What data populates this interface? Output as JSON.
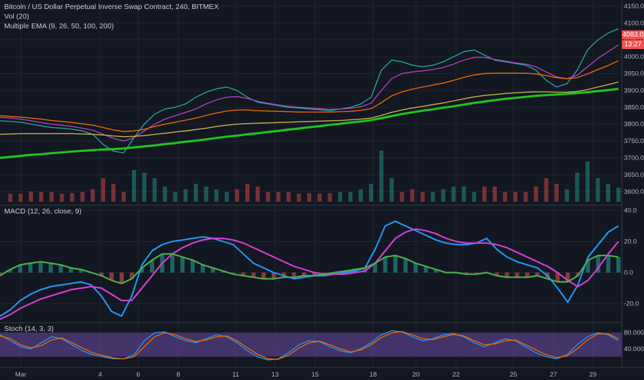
{
  "chart_data": [
    {
      "type": "line",
      "title": "Bitcoin / US Dollar Perpetual Inverse Swap Contract, 240, BITMEX",
      "indicators": [
        "Vol (20)",
        "Multiple EMA (9, 26, 50, 100, 200)"
      ],
      "ylim": [
        3570,
        4160
      ],
      "yticks": [
        "4150.0",
        "4100.0",
        "4050.0",
        "4000.0",
        "3950.0",
        "3900.0",
        "3850.0",
        "3800.0",
        "3750.0",
        "3700.0",
        "3650.0",
        "3600.0"
      ],
      "x_labels": [
        "Mar",
        "4",
        "6",
        "8",
        "11",
        "13",
        "15",
        "18",
        "20",
        "22",
        "25",
        "27",
        "29"
      ],
      "last_price": "4083.0",
      "countdown": "13:27",
      "series": [
        {
          "color": "#26a69a",
          "values": [
            3810,
            3808,
            3806,
            3800,
            3795,
            3790,
            3788,
            3785,
            3780,
            3770,
            3740,
            3720,
            3715,
            3760,
            3800,
            3830,
            3845,
            3850,
            3860,
            3880,
            3895,
            3905,
            3910,
            3900,
            3880,
            3865,
            3860,
            3855,
            3850,
            3848,
            3845,
            3843,
            3840,
            3845,
            3850,
            3860,
            3880,
            3960,
            3990,
            3985,
            3975,
            3970,
            3975,
            3985,
            4000,
            4015,
            4020,
            4005,
            3990,
            3985,
            3980,
            3975,
            3960,
            3930,
            3910,
            3920,
            3960,
            4020,
            4050,
            4070,
            4083
          ]
        },
        {
          "color": "#ab47bc",
          "values": [
            3820,
            3818,
            3815,
            3810,
            3805,
            3800,
            3797,
            3793,
            3788,
            3782,
            3770,
            3758,
            3750,
            3760,
            3780,
            3800,
            3815,
            3825,
            3835,
            3845,
            3860,
            3872,
            3880,
            3882,
            3876,
            3868,
            3862,
            3857,
            3853,
            3850,
            3848,
            3846,
            3844,
            3845,
            3847,
            3852,
            3862,
            3900,
            3935,
            3950,
            3955,
            3958,
            3962,
            3968,
            3978,
            3990,
            3998,
            3998,
            3992,
            3987,
            3982,
            3978,
            3970,
            3955,
            3940,
            3935,
            3945,
            3970,
            3995,
            4015,
            4035
          ]
        },
        {
          "color": "#ef6c00",
          "values": [
            3825,
            3823,
            3821,
            3818,
            3815,
            3811,
            3808,
            3805,
            3801,
            3797,
            3790,
            3783,
            3778,
            3780,
            3785,
            3793,
            3800,
            3806,
            3812,
            3818,
            3826,
            3833,
            3839,
            3842,
            3842,
            3840,
            3839,
            3838,
            3837,
            3836,
            3836,
            3836,
            3836,
            3837,
            3838,
            3841,
            3846,
            3864,
            3884,
            3896,
            3904,
            3910,
            3916,
            3922,
            3930,
            3939,
            3946,
            3950,
            3951,
            3951,
            3951,
            3951,
            3949,
            3944,
            3938,
            3935,
            3938,
            3949,
            3962,
            3974,
            3988
          ]
        },
        {
          "color": "#c9b84e",
          "values": [
            3770,
            3771,
            3772,
            3772,
            3772,
            3772,
            3772,
            3772,
            3771,
            3770,
            3768,
            3765,
            3763,
            3764,
            3766,
            3770,
            3773,
            3777,
            3780,
            3784,
            3788,
            3793,
            3797,
            3800,
            3802,
            3803,
            3804,
            3805,
            3806,
            3807,
            3808,
            3809,
            3810,
            3811,
            3813,
            3815,
            3818,
            3826,
            3835,
            3842,
            3848,
            3853,
            3858,
            3863,
            3869,
            3875,
            3881,
            3885,
            3888,
            3891,
            3893,
            3895,
            3896,
            3896,
            3895,
            3895,
            3897,
            3903,
            3910,
            3917,
            3925
          ]
        },
        {
          "color": "#1fc21f",
          "values": [
            3700,
            3703,
            3706,
            3709,
            3711,
            3714,
            3716,
            3719,
            3721,
            3723,
            3725,
            3726,
            3728,
            3731,
            3734,
            3737,
            3741,
            3744,
            3748,
            3751,
            3755,
            3759,
            3763,
            3766,
            3770,
            3773,
            3777,
            3780,
            3784,
            3787,
            3791,
            3794,
            3798,
            3801,
            3805,
            3808,
            3812,
            3818,
            3824,
            3830,
            3835,
            3840,
            3844,
            3849,
            3853,
            3858,
            3863,
            3867,
            3871,
            3875,
            3878,
            3881,
            3884,
            3886,
            3888,
            3890,
            3892,
            3895,
            3898,
            3901,
            3905
          ]
        }
      ]
    },
    {
      "type": "line",
      "title": "MACD (12, 26, close, 9)",
      "ylim": [
        -30,
        42
      ],
      "yticks": [
        "40.0",
        "20.0",
        "0.0",
        "-20.0"
      ],
      "series": [
        {
          "color": "#2196f3",
          "values": [
            -28,
            -24,
            -18,
            -14,
            -11,
            -9,
            -8,
            -7,
            -6,
            -8,
            -15,
            -25,
            -28,
            -15,
            5,
            14,
            18,
            20,
            21,
            22,
            23,
            22,
            20,
            18,
            12,
            6,
            3,
            0,
            -2,
            -4,
            -3,
            -2,
            -2,
            -1,
            0,
            1,
            3,
            15,
            30,
            33,
            30,
            27,
            24,
            21,
            19,
            18,
            18,
            19,
            22,
            15,
            10,
            7,
            5,
            3,
            -2,
            -10,
            -19,
            -8,
            10,
            18,
            26,
            30
          ]
        },
        {
          "color": "#d33fd3",
          "values": [
            -30,
            -27,
            -23,
            -20,
            -17,
            -15,
            -13,
            -11,
            -10,
            -9,
            -10,
            -14,
            -18,
            -18,
            -10,
            -2,
            6,
            12,
            16,
            19,
            21,
            22,
            22,
            21,
            19,
            16,
            13,
            10,
            7,
            4,
            2,
            0,
            -1,
            -1,
            -1,
            0,
            1,
            6,
            14,
            22,
            26,
            28,
            27,
            25,
            22,
            20,
            19,
            19,
            19,
            18,
            16,
            13,
            10,
            7,
            4,
            0,
            -5,
            -9,
            -5,
            3,
            12,
            20
          ]
        },
        {
          "color": "#4caf50",
          "values": [
            -2,
            2,
            5,
            6,
            7,
            6,
            5,
            3,
            2,
            0,
            -2,
            -5,
            -7,
            -4,
            3,
            8,
            12,
            12,
            10,
            8,
            5,
            3,
            1,
            -1,
            -2,
            -3,
            -4,
            -4,
            -3,
            -3,
            -2,
            -2,
            -1,
            0,
            1,
            2,
            3,
            6,
            10,
            11,
            9,
            6,
            4,
            2,
            0,
            0,
            -1,
            -1,
            0,
            -2,
            -3,
            -3,
            -3,
            -2,
            -4,
            -6,
            -6,
            -2,
            8,
            11,
            11,
            10
          ]
        }
      ]
    },
    {
      "type": "line",
      "title": "Stoch (14, 3, 3)",
      "ylim": [
        0,
        100
      ],
      "yticks": [
        "80.0000",
        "40.0000"
      ],
      "series": [
        {
          "color": "#2196f3",
          "values": [
            75,
            60,
            45,
            40,
            55,
            70,
            65,
            50,
            35,
            25,
            20,
            15,
            15,
            25,
            60,
            80,
            82,
            70,
            60,
            55,
            65,
            75,
            70,
            55,
            35,
            20,
            12,
            15,
            30,
            50,
            60,
            58,
            45,
            35,
            30,
            40,
            55,
            75,
            85,
            82,
            70,
            60,
            65,
            75,
            78,
            70,
            55,
            45,
            55,
            65,
            60,
            45,
            30,
            20,
            15,
            25,
            50,
            70,
            80,
            75,
            60
          ]
        },
        {
          "color": "#ef6c00",
          "values": [
            72,
            65,
            50,
            42,
            48,
            62,
            67,
            55,
            42,
            30,
            23,
            17,
            15,
            20,
            45,
            70,
            80,
            75,
            65,
            58,
            62,
            70,
            72,
            60,
            42,
            26,
            15,
            14,
            24,
            42,
            55,
            59,
            50,
            40,
            32,
            37,
            50,
            68,
            80,
            83,
            75,
            65,
            63,
            70,
            76,
            72,
            60,
            50,
            52,
            60,
            62,
            50,
            37,
            25,
            18,
            22,
            40,
            62,
            77,
            77,
            65
          ]
        }
      ]
    }
  ]
}
